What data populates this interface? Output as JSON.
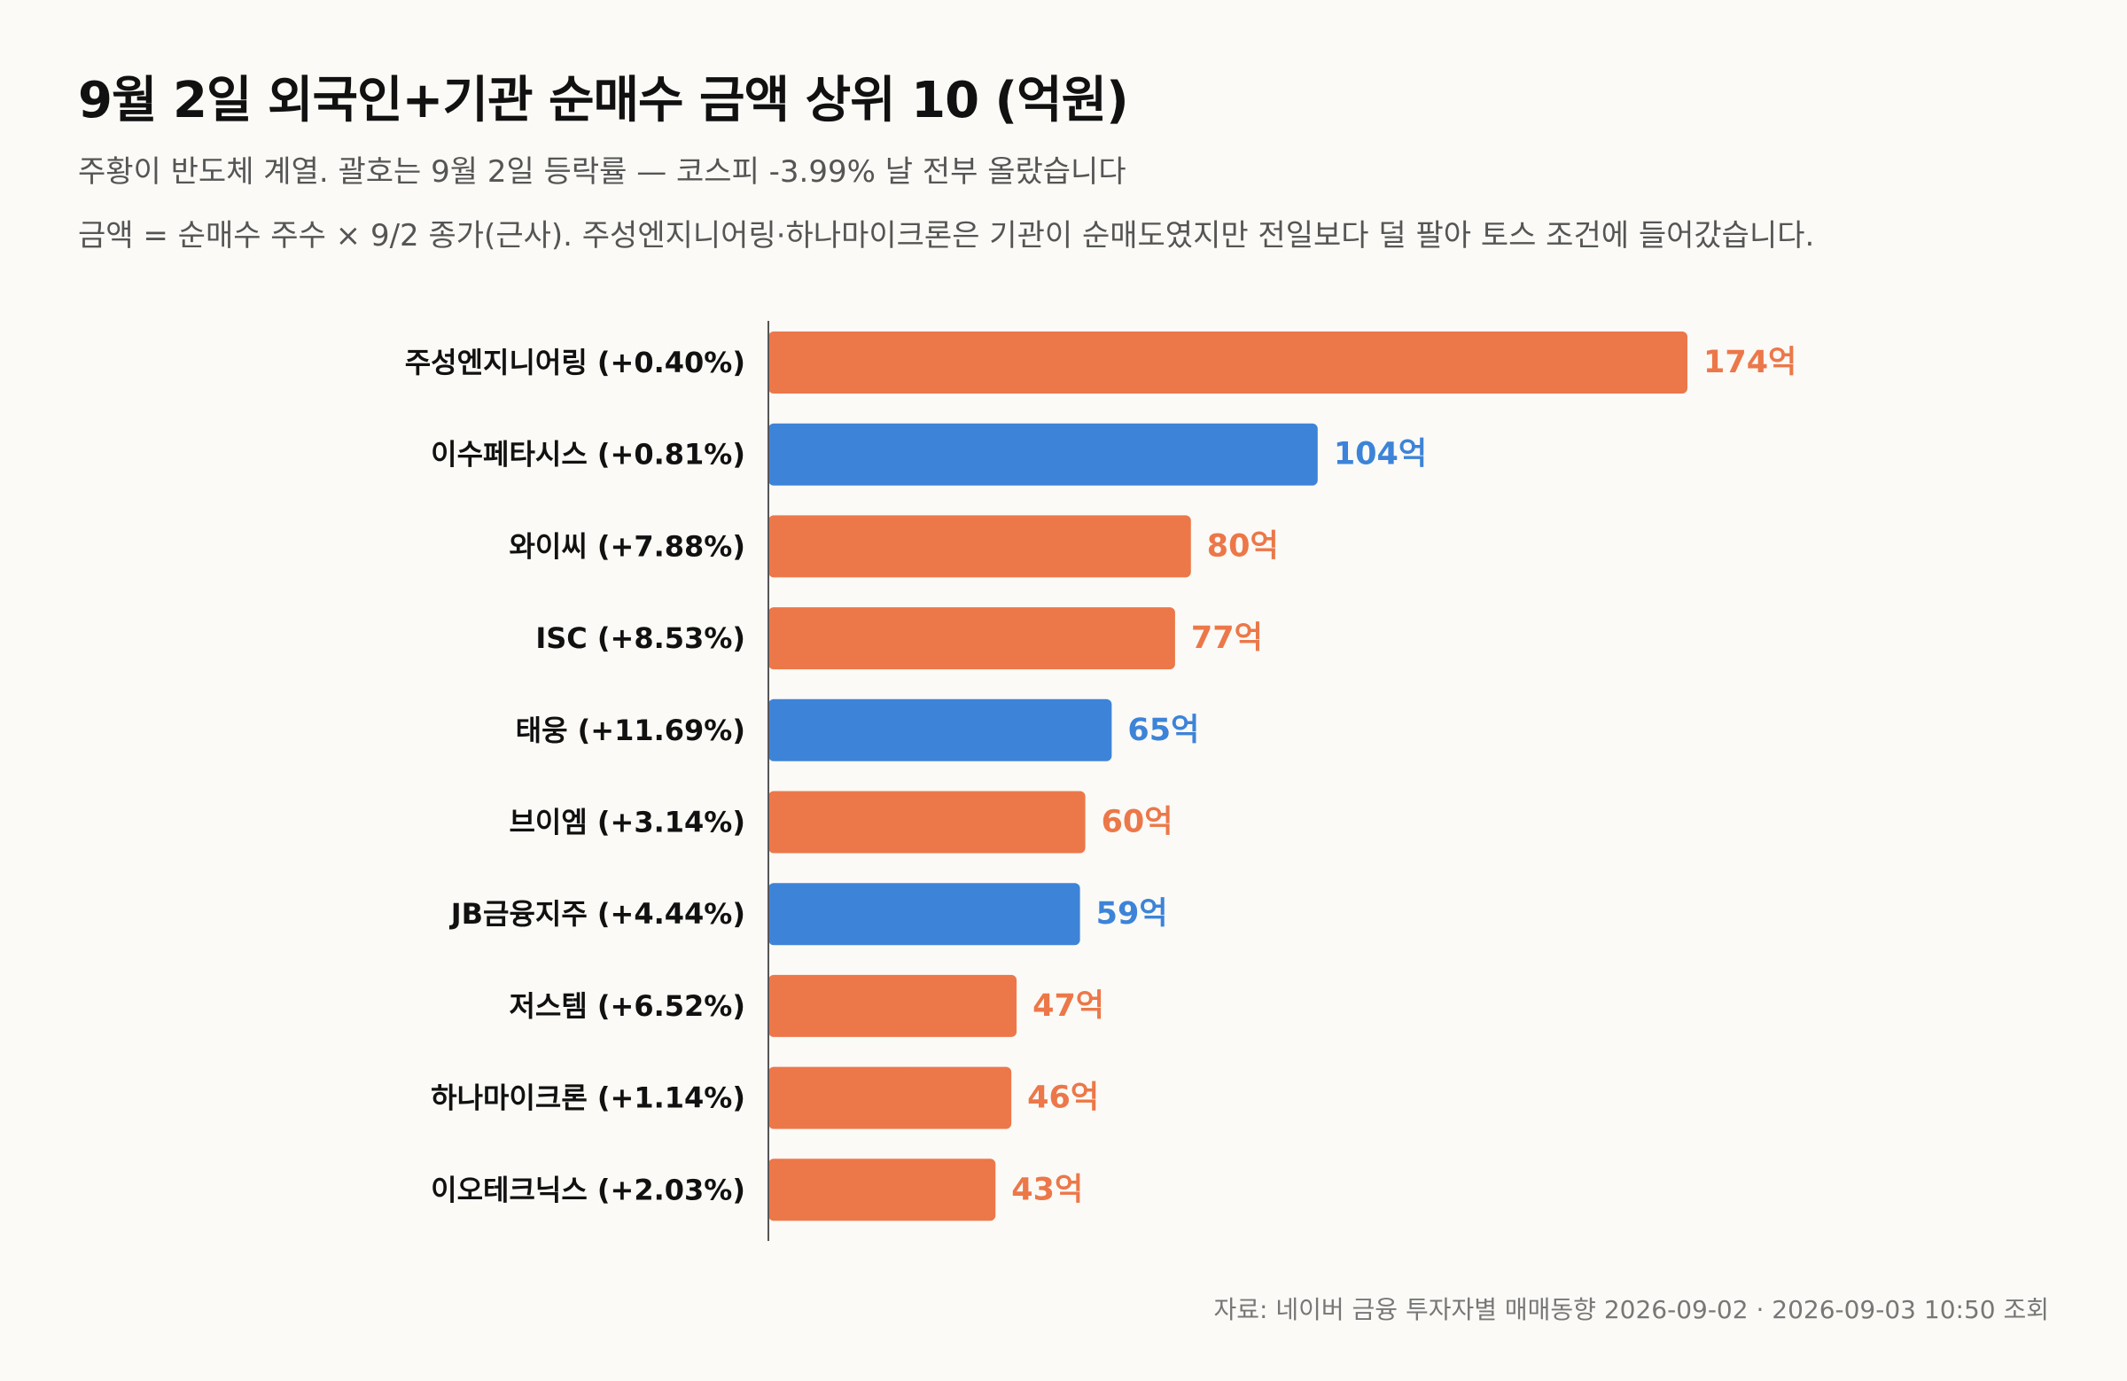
{
  "chart_data": {
    "type": "bar",
    "orientation": "horizontal",
    "title": "9월 2일 외국인+기관 순매수 금액 상위 10 (억원)",
    "subtitle": "주황이 반도체 계열. 괄호는 9월 2일 등락률 — 코스피 -3.99% 날 전부 올랐습니다",
    "note": "금액 = 순매수 주수 × 9/2 종가(근사). 주성엔지니어링·하나마이크론은 기관이 순매도였지만 전일보다 덜 팔아 토스 조건에 들어갔습니다.",
    "categories": [
      "주성엔지니어링 (+0.40%)",
      "이수페타시스 (+0.81%)",
      "와이씨 (+7.88%)",
      "ISC (+8.53%)",
      "태웅 (+11.69%)",
      "브이엠 (+3.14%)",
      "JB금융지주 (+4.44%)",
      "저스템 (+6.52%)",
      "하나마이크론 (+1.14%)",
      "이오테크닉스 (+2.03%)"
    ],
    "values": [
      174,
      104,
      80,
      77,
      65,
      60,
      59,
      47,
      46,
      43
    ],
    "value_labels": [
      "174억",
      "104억",
      "80억",
      "77억",
      "65억",
      "60억",
      "59억",
      "47억",
      "46억",
      "43억"
    ],
    "semiconductor": [
      true,
      false,
      true,
      true,
      false,
      true,
      false,
      true,
      true,
      true
    ],
    "colors": {
      "semiconductor": "#ec7748",
      "other": "#3d84d9",
      "axis": "#555555"
    },
    "xlabel": "",
    "ylabel": "",
    "legend": "none",
    "grid": false
  },
  "footer": {
    "source": "자료: 네이버 금융 투자자별 매매동향 2026-09-02 · 2026-09-03 10:50 조회"
  }
}
